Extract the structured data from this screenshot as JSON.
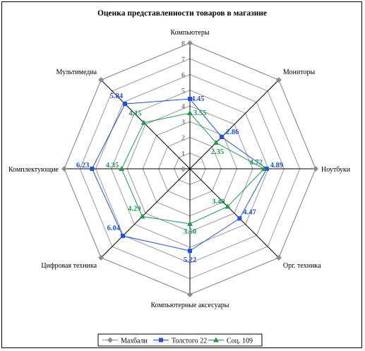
{
  "chart_data": {
    "type": "radar",
    "title": "Оценка представленности товаров в магазине",
    "categories": [
      "Компьютеры",
      "Мониторы",
      "Ноутбуки",
      "Орг. техника",
      "Компьютерные аксесуары",
      "Цифровая техника",
      "Комплектующие",
      "Мультимедиа"
    ],
    "rlim": [
      0,
      8
    ],
    "ticks": [
      "0",
      "1",
      "2",
      "3",
      "4",
      "5",
      "6",
      "7",
      "8"
    ],
    "grid": true,
    "legend_position": "bottom",
    "series": [
      {
        "name": "Махбали",
        "color": "#8c8c8c",
        "marker": "diamond",
        "values": [
          8,
          8,
          8,
          8,
          8,
          8,
          8,
          8
        ],
        "labels": []
      },
      {
        "name": "Толстого 22",
        "color": "#1f4fe0",
        "marker": "square",
        "values": [
          4.45,
          2.86,
          4.89,
          4.47,
          5.22,
          6.04,
          6.23,
          5.84
        ],
        "labels": [
          "4.45",
          "2.86",
          "4.89",
          "4.47",
          "5.22",
          "6.04",
          "6.23",
          "5.84"
        ]
      },
      {
        "name": "Соц. 109",
        "color": "#1e9a4e",
        "marker": "triangle",
        "values": [
          3.55,
          2.35,
          4.72,
          3.4,
          3.5,
          4.29,
          4.35,
          4.15
        ],
        "labels": [
          "3.55",
          "2.35",
          "4.72",
          "3.40",
          "3.50",
          "4.29",
          "4.35",
          "4.15"
        ]
      }
    ]
  }
}
